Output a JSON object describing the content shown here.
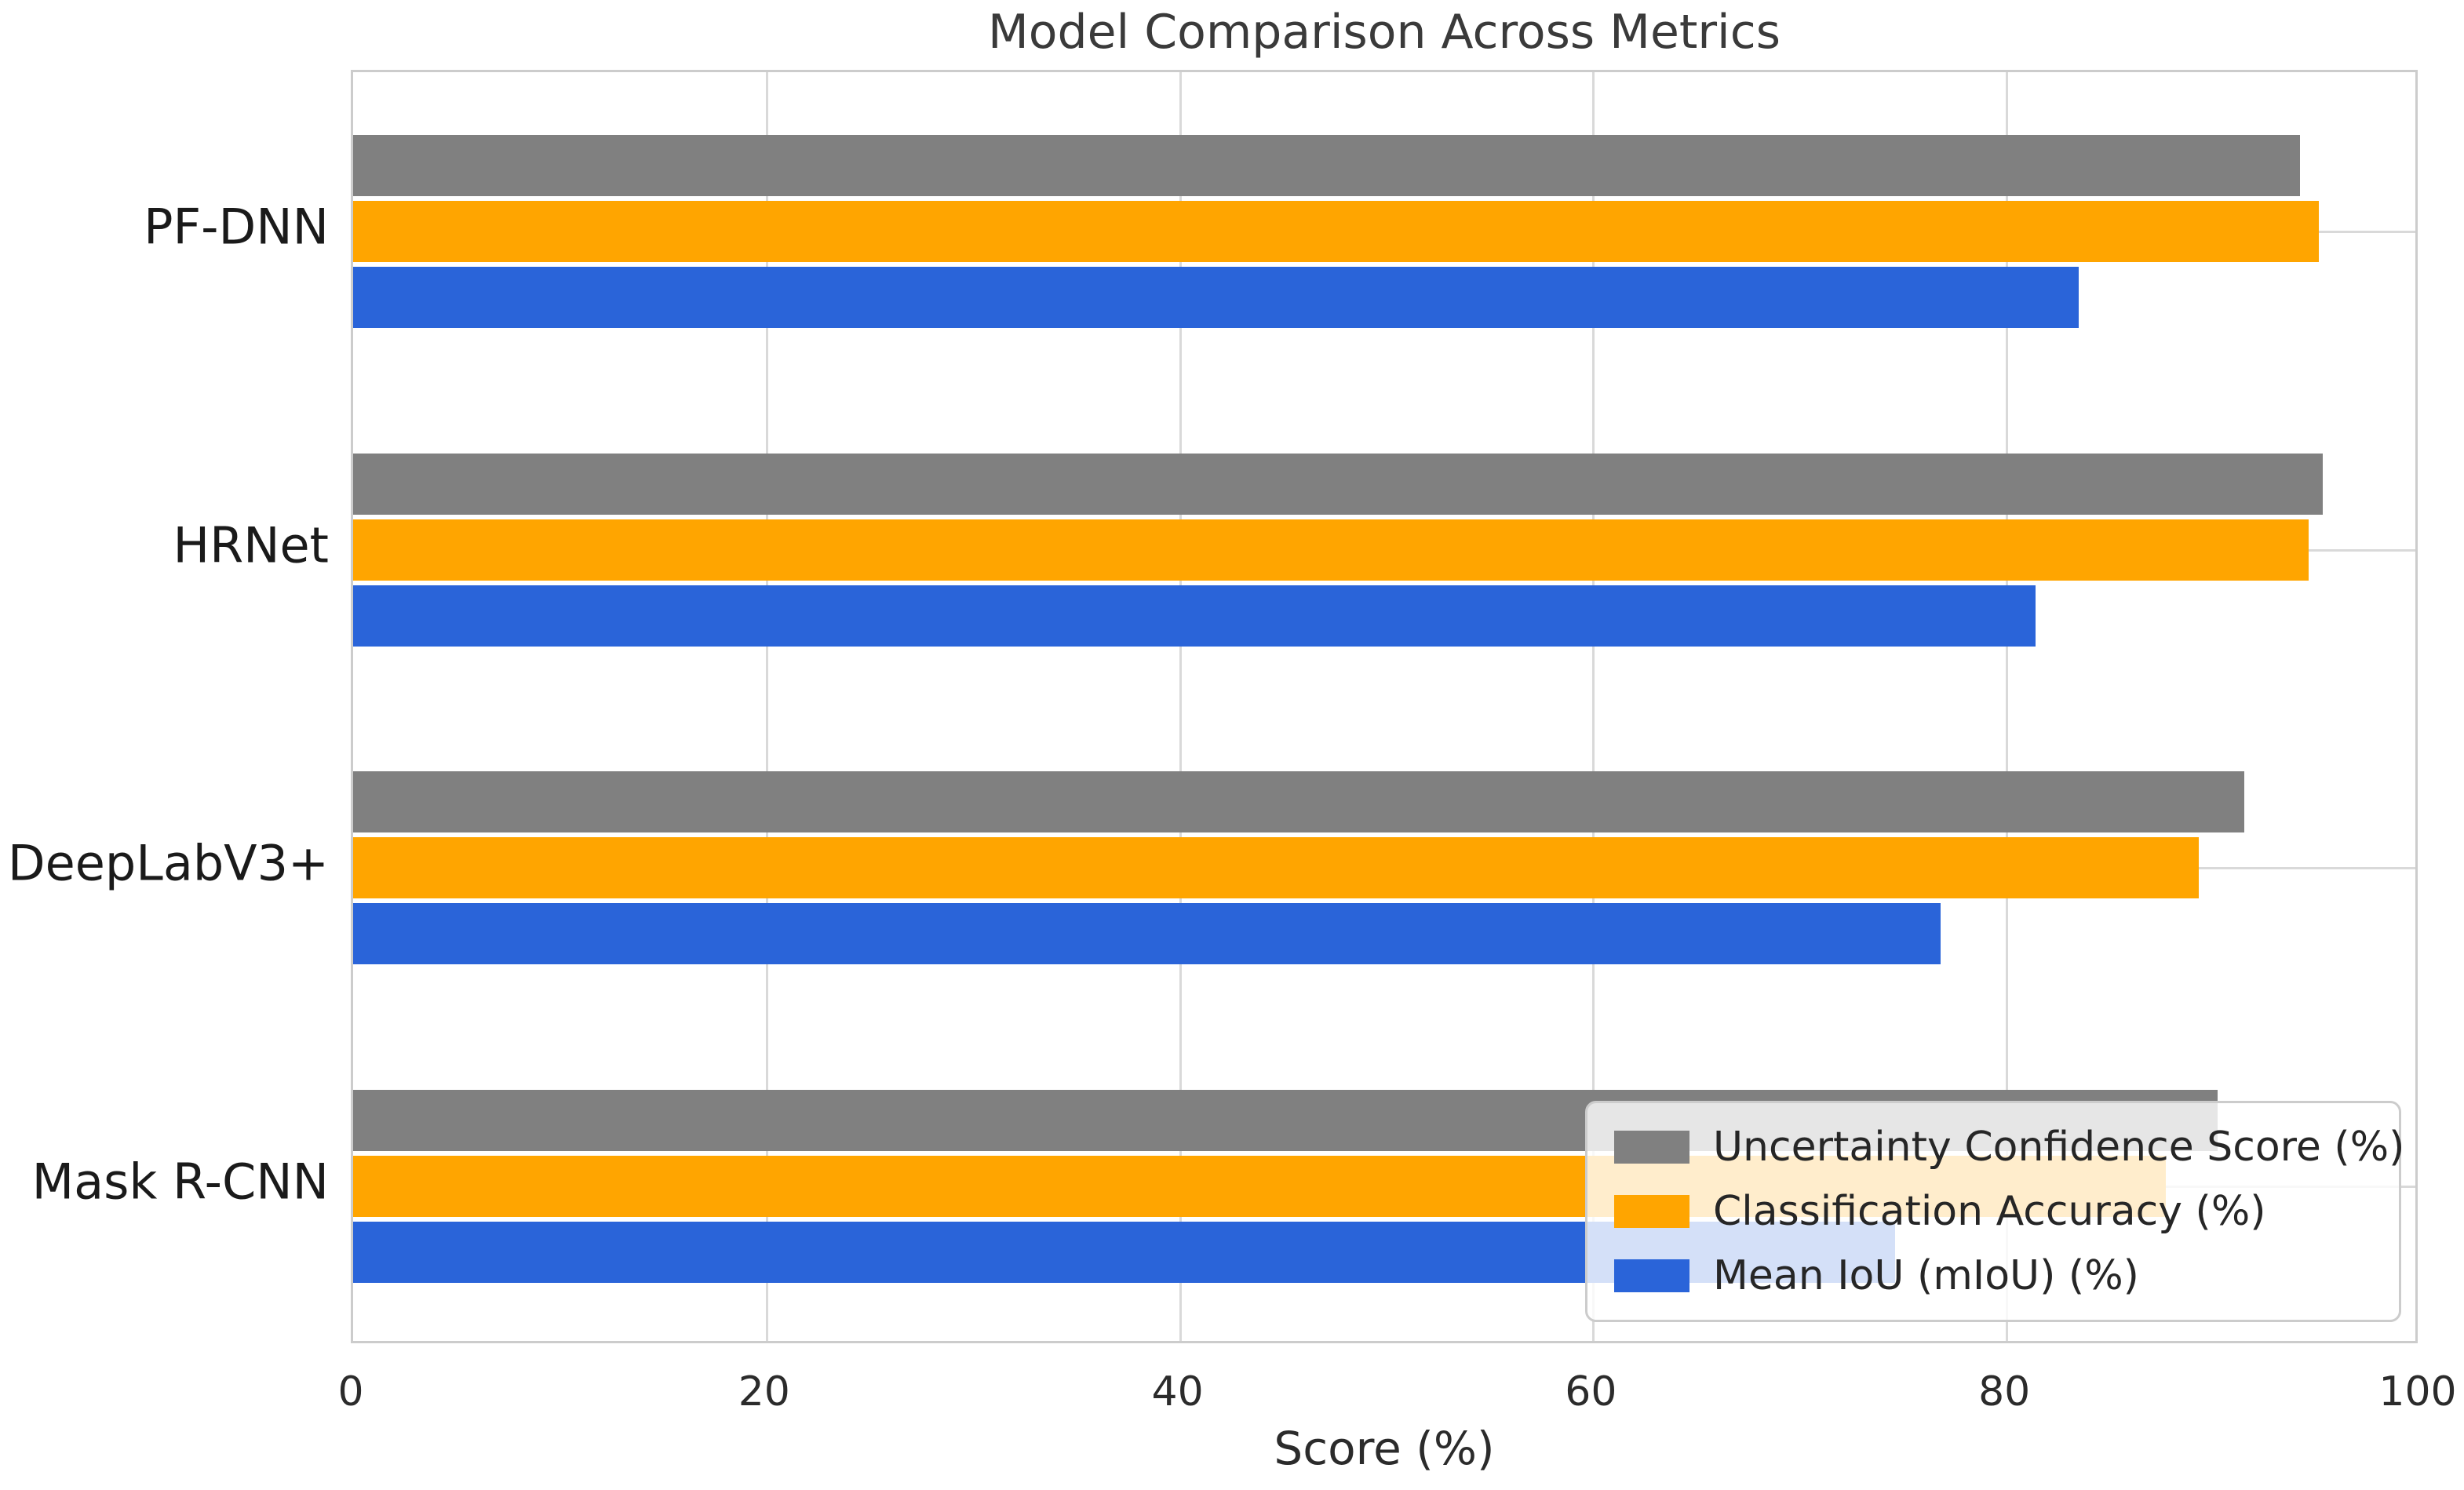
{
  "chart_data": {
    "type": "bar",
    "orientation": "horizontal",
    "title": "Model Comparison Across Metrics",
    "xlabel": "Score (%)",
    "xlim": [
      0,
      100
    ],
    "xticks": [
      0,
      20,
      40,
      60,
      80,
      100
    ],
    "grid": true,
    "legend_position": "lower right",
    "categories": [
      "PF-DNN",
      "HRNet",
      "DeepLabV3+",
      "Mask R-CNN"
    ],
    "series": [
      {
        "name": "Uncertainty Confidence Score (%)",
        "color": "#808080",
        "values": [
          94.2,
          95.3,
          91.5,
          90.2
        ]
      },
      {
        "name": "Classification Accuracy (%)",
        "color": "#FFA500",
        "values": [
          95.1,
          94.6,
          89.3,
          87.7
        ]
      },
      {
        "name": "Mean IoU (mIoU) (%)",
        "color": "#2A64D9",
        "values": [
          83.5,
          81.4,
          76.8,
          74.6
        ]
      }
    ],
    "colors": {
      "background": "#ffffff",
      "grid": "#d9d9d9",
      "frame": "#cccccc"
    }
  }
}
